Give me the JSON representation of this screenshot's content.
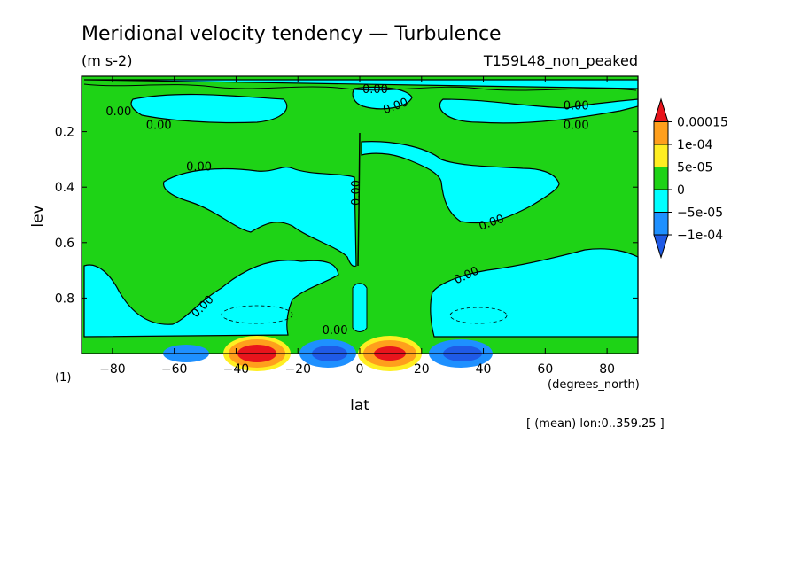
{
  "chart_data": {
    "type": "heatmap",
    "title": "Meridional velocity tendency — Turbulence",
    "units": "(m s-2)",
    "experiment": "T159L48_non_peaked",
    "xlabel": "lat",
    "x_units": "(degrees_north)",
    "ylabel": "lev",
    "y_units": "(1)",
    "xlim": [
      -90,
      90
    ],
    "ylim": [
      1.0,
      0.0
    ],
    "y_reversed": true,
    "x_ticks": [
      "−80",
      "−60",
      "−40",
      "−20",
      "0",
      "20",
      "40",
      "60",
      "80"
    ],
    "x_tick_values": [
      -80,
      -60,
      -40,
      -20,
      0,
      20,
      40,
      60,
      80
    ],
    "y_ticks": [
      "0.2",
      "0.4",
      "0.6",
      "0.8"
    ],
    "y_tick_values": [
      0.2,
      0.4,
      0.6,
      0.8
    ],
    "colorbar_labels": [
      "0.00015",
      "1e-04",
      "5e-05",
      "0",
      "−5e-05",
      "−1e-04"
    ],
    "colorbar_colors": [
      "#e8141c",
      "#ff9f1c",
      "#ffee22",
      "#1ed316",
      "#00ffff",
      "#1e90ff",
      "#1f5ae6"
    ],
    "contour_labels": [
      "0.00",
      "0.00",
      "0.00",
      "0.00",
      "0.00",
      "0.00",
      "0.00",
      "0.00",
      "0.00",
      "0.00",
      "0.00",
      "0.00"
    ],
    "grid": false,
    "legend": "right",
    "footnote": "[ (mean) lon:0..359.25 ]",
    "regions": [
      {
        "sign": "positive",
        "lat_range": [
          -90,
          90
        ],
        "lev_range": [
          0.0,
          1.0
        ],
        "value": 2e-05
      },
      {
        "sign": "negative",
        "lat_range": [
          -70,
          0
        ],
        "lev_range": [
          0.35,
          0.6
        ],
        "value": -2e-05
      },
      {
        "sign": "negative",
        "lat_range": [
          0,
          75
        ],
        "lev_range": [
          0.25,
          0.7
        ],
        "value": -2e-05
      },
      {
        "sign": "negative",
        "lat_range": [
          -90,
          -30
        ],
        "lev_range": [
          0.75,
          1.0
        ],
        "value": -2e-05
      },
      {
        "sign": "negative",
        "lat_range": [
          25,
          90
        ],
        "lev_range": [
          0.75,
          1.0
        ],
        "value": -2e-05
      },
      {
        "sign": "negative",
        "lat_range": [
          -60,
          60
        ],
        "lev_range": [
          0.0,
          0.18
        ],
        "value": -2e-05
      },
      {
        "sign": "positive",
        "lat_range": [
          -50,
          -30
        ],
        "lev_range": [
          0.93,
          1.0
        ],
        "value": 0.00016
      },
      {
        "sign": "negative",
        "lat_range": [
          -12,
          -2
        ],
        "lev_range": [
          0.95,
          1.0
        ],
        "value": -0.00011
      },
      {
        "sign": "positive",
        "lat_range": [
          2,
          20
        ],
        "lev_range": [
          0.93,
          1.0
        ],
        "value": 0.00016
      },
      {
        "sign": "negative",
        "lat_range": [
          25,
          45
        ],
        "lev_range": [
          0.95,
          1.0
        ],
        "value": -0.00011
      }
    ]
  }
}
